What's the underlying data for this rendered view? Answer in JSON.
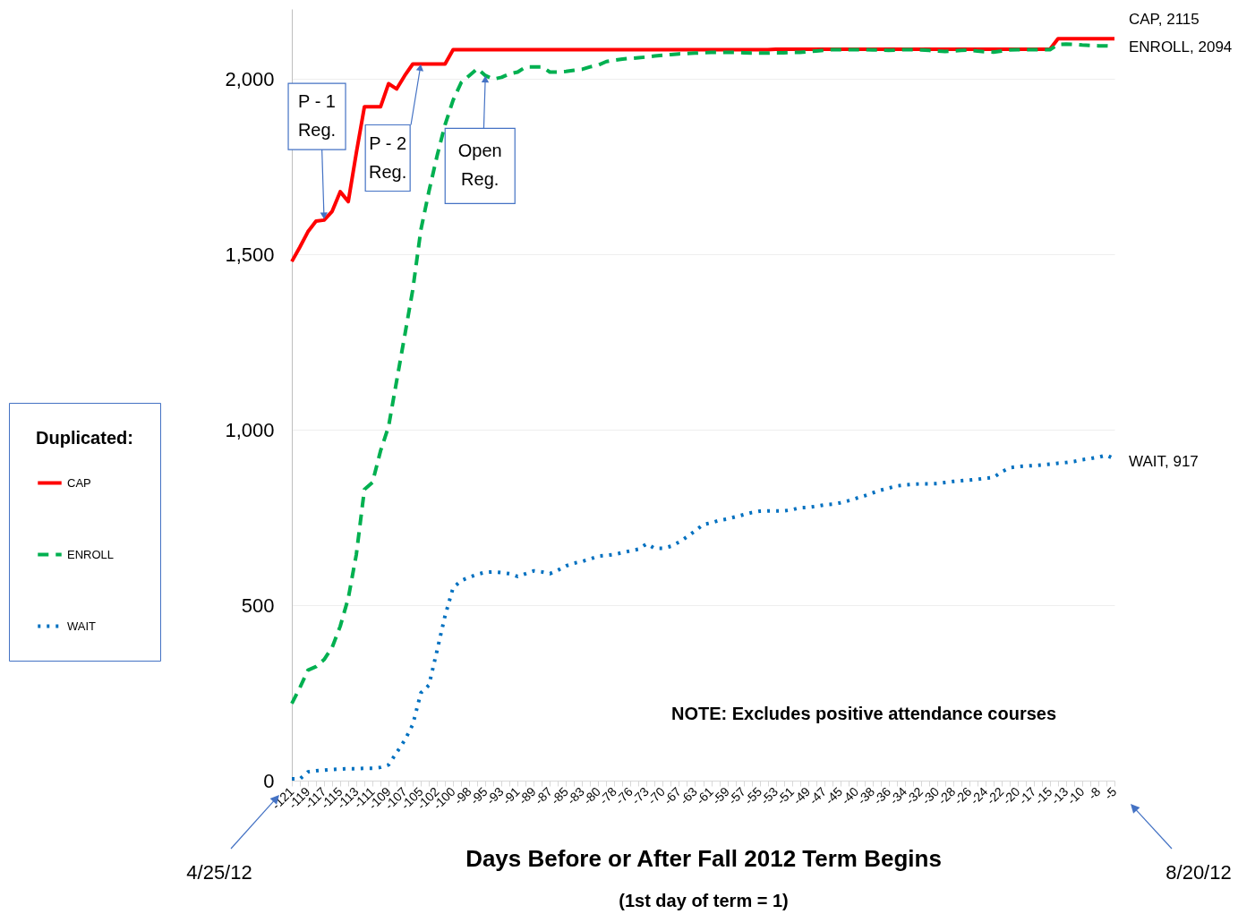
{
  "chart_data": {
    "type": "line",
    "xlabel": "Days Before or After Fall 2012 Term Begins",
    "legend_title": "Duplicated:",
    "categories": [
      "-121",
      null,
      "-119",
      null,
      "-117",
      null,
      "-115",
      null,
      "-113",
      null,
      "-111",
      null,
      "-109",
      null,
      "-107",
      null,
      "-105",
      null,
      "-102",
      null,
      "-100",
      null,
      "-98",
      null,
      "-95",
      null,
      "-93",
      null,
      "-91",
      null,
      "-89",
      null,
      "-87",
      null,
      "-85",
      null,
      "-83",
      null,
      "-80",
      null,
      "-78",
      null,
      "-76",
      null,
      "-73",
      null,
      "-70",
      null,
      "-67",
      null,
      "-63",
      null,
      "-61",
      null,
      "-59",
      null,
      "-57",
      null,
      "-55",
      null,
      "-53",
      null,
      "-51",
      null,
      "-49",
      null,
      "-47",
      null,
      "-45",
      null,
      "-40",
      null,
      "-38",
      null,
      "-36",
      null,
      "-34",
      null,
      "-32",
      null,
      "-30",
      null,
      "-28",
      null,
      "-26",
      null,
      "-24",
      null,
      "-22",
      null,
      "-20",
      null,
      "-17",
      null,
      "-15",
      null,
      "-13",
      null,
      "-10",
      null,
      "-8",
      null,
      "-5"
    ],
    "series": [
      {
        "name": "CAP",
        "color": "#ff0000",
        "line_style": "solid",
        "values": [
          1480,
          1521,
          1565,
          1595,
          1598,
          1623,
          1679,
          1651,
          1790,
          1921,
          1921,
          1921,
          1987,
          1972,
          2010,
          2043,
          2043,
          2043,
          2043,
          2043,
          2084,
          2084,
          2084,
          2084,
          2084,
          2084,
          2084,
          2084,
          2084,
          2084,
          2084,
          2084,
          2084,
          2084,
          2084,
          2084,
          2084,
          2084,
          2084,
          2084,
          2084,
          2084,
          2084,
          2084,
          2084,
          2084,
          2084,
          2084,
          2084,
          2084,
          2084,
          2084,
          2084,
          2084,
          2084,
          2084,
          2084,
          2084,
          2084,
          2084,
          2085,
          2085,
          2085,
          2085,
          2085,
          2085,
          2085,
          2085,
          2085,
          2085,
          2085,
          2085,
          2085,
          2085,
          2085,
          2085,
          2085,
          2085,
          2085,
          2085,
          2085,
          2085,
          2085,
          2085,
          2085,
          2085,
          2085,
          2085,
          2085,
          2085,
          2085,
          2085,
          2085,
          2085,
          2085,
          2115,
          2115,
          2115,
          2115,
          2115,
          2115,
          2115,
          2115
        ]
      },
      {
        "name": "ENROLL",
        "color": "#00b050",
        "line_style": "dashed",
        "values": [
          220,
          265,
          315,
          325,
          345,
          380,
          440,
          520,
          645,
          830,
          850,
          940,
          1010,
          1140,
          1269,
          1400,
          1570,
          1680,
          1780,
          1870,
          1940,
          1990,
          2010,
          2030,
          2010,
          2000,
          2005,
          2015,
          2020,
          2035,
          2035,
          2035,
          2020,
          2020,
          2022,
          2025,
          2028,
          2035,
          2040,
          2050,
          2054,
          2057,
          2059,
          2061,
          2063,
          2066,
          2068,
          2070,
          2072,
          2073,
          2074,
          2075,
          2076,
          2076,
          2076,
          2076,
          2075,
          2074,
          2074,
          2074,
          2075,
          2075,
          2076,
          2076,
          2078,
          2080,
          2082,
          2084,
          2084,
          2084,
          2084,
          2084,
          2083,
          2083,
          2082,
          2083,
          2084,
          2084,
          2083,
          2082,
          2080,
          2079,
          2080,
          2082,
          2083,
          2080,
          2078,
          2077,
          2080,
          2083,
          2084,
          2084,
          2084,
          2084,
          2084,
          2099,
          2100,
          2099,
          2097,
          2096,
          2095,
          2095,
          2094
        ]
      },
      {
        "name": "WAIT",
        "color": "#0070c0",
        "line_style": "dotted",
        "values": [
          5,
          5,
          25,
          28,
          30,
          32,
          33,
          34,
          34,
          35,
          35,
          38,
          45,
          80,
          115,
          160,
          250,
          272,
          370,
          470,
          550,
          570,
          580,
          588,
          594,
          595,
          593,
          590,
          582,
          590,
          598,
          595,
          590,
          600,
          612,
          620,
          625,
          632,
          640,
          642,
          645,
          650,
          655,
          660,
          675,
          662,
          662,
          668,
          680,
          695,
          712,
          730,
          735,
          742,
          746,
          752,
          758,
          764,
          768,
          769,
          769,
          769,
          772,
          778,
          779,
          782,
          786,
          788,
          792,
          798,
          805,
          812,
          820,
          828,
          834,
          840,
          843,
          845,
          846,
          846,
          847,
          850,
          853,
          855,
          857,
          859,
          862,
          864,
          880,
          892,
          895,
          897,
          898,
          900,
          902,
          905,
          907,
          910,
          915,
          918,
          922,
          928,
          917
        ]
      }
    ],
    "ylim": [
      0,
      2200
    ],
    "yticks": [
      0,
      500,
      {
        "value": 1000,
        "label": "1,000"
      },
      {
        "value": 1500,
        "label": "1,500"
      },
      {
        "value": 2000,
        "label": "2,000"
      }
    ],
    "grid": "y",
    "legend": "left",
    "annotations": [
      {
        "text": "P - 1 Reg.",
        "x": "-117",
        "y": 1600
      },
      {
        "text": "P - 2 Reg.",
        "x": "-105",
        "y": 2043
      },
      {
        "text": "Open Reg.",
        "x": "-95",
        "y": 2010
      },
      {
        "text": "CAP, 2115",
        "x": "-5",
        "y": 2115
      },
      {
        "text": "ENROLL, 2094",
        "x": "-5",
        "y": 2094
      },
      {
        "text": "WAIT, 917",
        "x": "-5",
        "y": 917
      },
      "4/25/12",
      "8/20/12",
      "NOTE: Excludes positive attendance courses",
      "(1st day of term = 1)"
    ]
  }
}
